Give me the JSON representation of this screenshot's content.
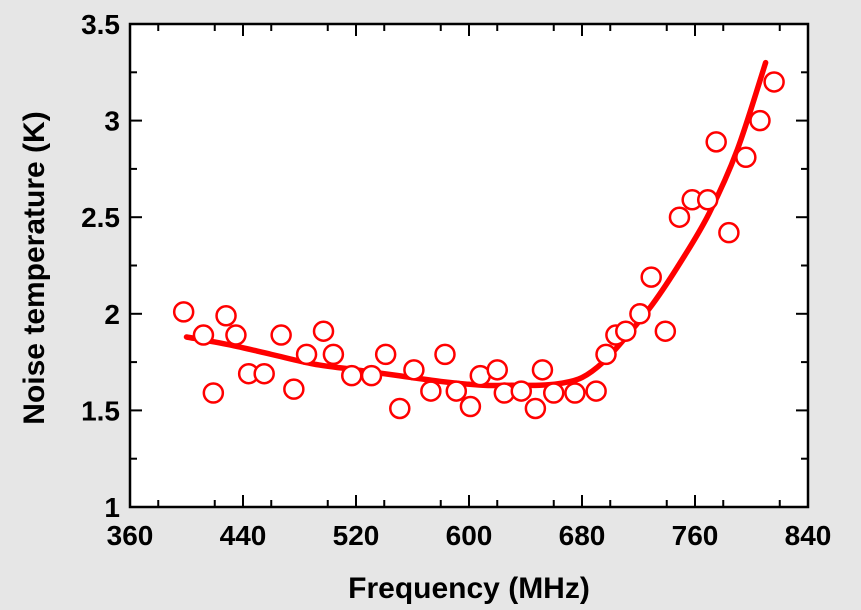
{
  "chart_data": {
    "type": "scatter",
    "title": "",
    "xlabel": "Frequency (MHz)",
    "ylabel": "Noise temperature (K)",
    "xlim": [
      360,
      840
    ],
    "ylim": [
      1,
      3.5
    ],
    "x_ticks": [
      "360",
      "440",
      "520",
      "600",
      "680",
      "760",
      "840"
    ],
    "y_ticks": [
      "1",
      "1.5",
      "2",
      "2.5",
      "3",
      "3.5"
    ],
    "grid": false,
    "legend": "none",
    "colors": {
      "series": "#ff0000",
      "background": "#e6e6e6",
      "plot_area": "#ffffff",
      "axes": "#000000"
    },
    "series": [
      {
        "kind": "points",
        "marker": "open-circle",
        "x": [
          398,
          412,
          419,
          428,
          435,
          444,
          455,
          467,
          476,
          485,
          497,
          504,
          517,
          531,
          541,
          551,
          561,
          573,
          583,
          591,
          601,
          608,
          620,
          625,
          637,
          647,
          652,
          660,
          675,
          690,
          697,
          704,
          711,
          721,
          729,
          739,
          749,
          758,
          769,
          775,
          784,
          796,
          806,
          816
        ],
        "y": [
          2.01,
          1.89,
          1.59,
          1.99,
          1.89,
          1.69,
          1.69,
          1.89,
          1.61,
          1.79,
          1.91,
          1.79,
          1.68,
          1.68,
          1.79,
          1.51,
          1.71,
          1.6,
          1.79,
          1.6,
          1.52,
          1.68,
          1.71,
          1.59,
          1.6,
          1.51,
          1.71,
          1.59,
          1.59,
          1.6,
          1.79,
          1.89,
          1.91,
          2.0,
          2.19,
          1.91,
          2.5,
          2.59,
          2.59,
          2.89,
          2.42,
          2.81,
          3.0,
          3.2
        ]
      },
      {
        "kind": "fit-line",
        "x": [
          400,
          430,
          460,
          490,
          520,
          550,
          580,
          610,
          630,
          650,
          665,
          680,
          695,
          710,
          730,
          750,
          770,
          790,
          810
        ],
        "y": [
          1.88,
          1.84,
          1.79,
          1.74,
          1.71,
          1.68,
          1.65,
          1.63,
          1.63,
          1.63,
          1.64,
          1.67,
          1.75,
          1.87,
          2.05,
          2.27,
          2.52,
          2.85,
          3.3
        ]
      }
    ]
  }
}
